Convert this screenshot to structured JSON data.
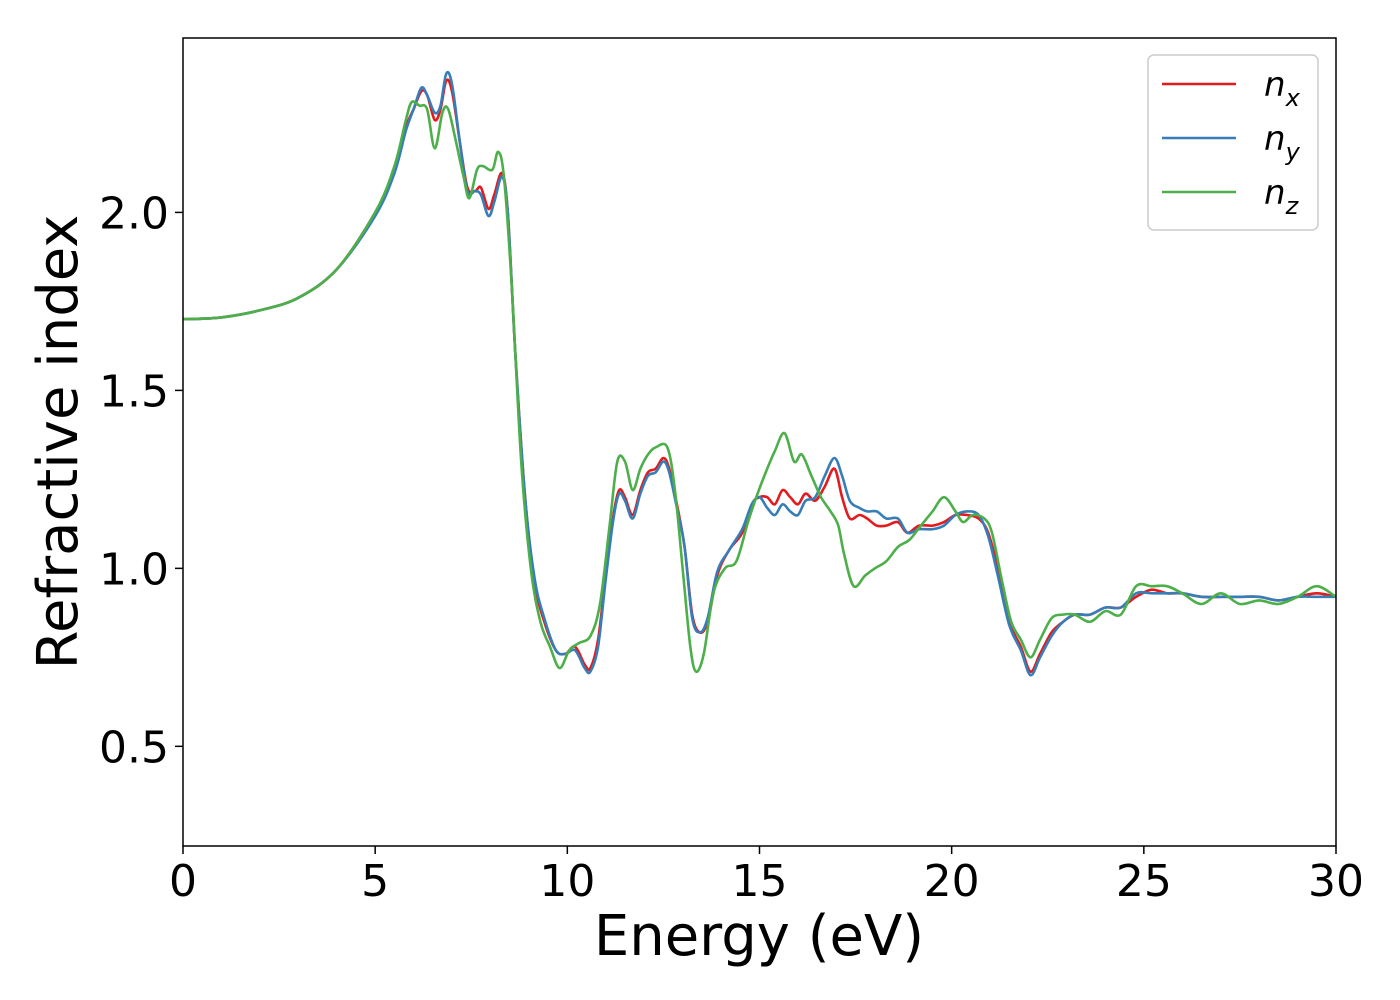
{
  "chart_data": {
    "type": "line",
    "title": "",
    "xlabel": "Energy (eV)",
    "ylabel": "Refractive index",
    "xlim": [
      0,
      30
    ],
    "ylim": [
      0.22,
      2.49
    ],
    "x_ticks": [
      0,
      5,
      10,
      15,
      20,
      25,
      30
    ],
    "y_ticks": [
      0.5,
      1.0,
      1.5,
      2.0
    ],
    "x_tick_labels": [
      "0",
      "5",
      "10",
      "15",
      "20",
      "25",
      "30"
    ],
    "y_tick_labels": [
      "0.5",
      "1.0",
      "1.5",
      "2.0"
    ],
    "grid": false,
    "legend_position": "top-right",
    "series": [
      {
        "name": "n",
        "subscript": "x",
        "color": "#e41a1c",
        "points": [
          [
            0,
            1.7
          ],
          [
            1,
            1.705
          ],
          [
            2,
            1.725
          ],
          [
            3,
            1.76
          ],
          [
            4,
            1.84
          ],
          [
            5,
            2.0
          ],
          [
            5.5,
            2.12
          ],
          [
            5.8,
            2.24
          ],
          [
            6.0,
            2.29
          ],
          [
            6.2,
            2.34
          ],
          [
            6.35,
            2.33
          ],
          [
            6.55,
            2.26
          ],
          [
            6.7,
            2.29
          ],
          [
            6.85,
            2.37
          ],
          [
            7.0,
            2.34
          ],
          [
            7.2,
            2.2
          ],
          [
            7.4,
            2.07
          ],
          [
            7.6,
            2.06
          ],
          [
            7.75,
            2.07
          ],
          [
            7.95,
            2.01
          ],
          [
            8.1,
            2.05
          ],
          [
            8.3,
            2.11
          ],
          [
            8.45,
            2.0
          ],
          [
            8.65,
            1.6
          ],
          [
            8.9,
            1.2
          ],
          [
            9.15,
            0.96
          ],
          [
            9.4,
            0.85
          ],
          [
            9.7,
            0.77
          ],
          [
            9.95,
            0.76
          ],
          [
            10.2,
            0.78
          ],
          [
            10.45,
            0.73
          ],
          [
            10.6,
            0.72
          ],
          [
            10.8,
            0.8
          ],
          [
            11.0,
            0.98
          ],
          [
            11.2,
            1.15
          ],
          [
            11.35,
            1.22
          ],
          [
            11.5,
            1.2
          ],
          [
            11.7,
            1.15
          ],
          [
            11.9,
            1.22
          ],
          [
            12.1,
            1.27
          ],
          [
            12.3,
            1.28
          ],
          [
            12.5,
            1.31
          ],
          [
            12.65,
            1.28
          ],
          [
            12.85,
            1.18
          ],
          [
            13.05,
            1.06
          ],
          [
            13.25,
            0.87
          ],
          [
            13.45,
            0.82
          ],
          [
            13.65,
            0.85
          ],
          [
            13.9,
            0.98
          ],
          [
            14.2,
            1.05
          ],
          [
            14.55,
            1.1
          ],
          [
            14.8,
            1.18
          ],
          [
            15.0,
            1.2
          ],
          [
            15.2,
            1.2
          ],
          [
            15.4,
            1.18
          ],
          [
            15.6,
            1.22
          ],
          [
            15.8,
            1.2
          ],
          [
            16.0,
            1.18
          ],
          [
            16.2,
            1.21
          ],
          [
            16.45,
            1.19
          ],
          [
            16.7,
            1.23
          ],
          [
            16.95,
            1.28
          ],
          [
            17.15,
            1.2
          ],
          [
            17.35,
            1.14
          ],
          [
            17.6,
            1.15
          ],
          [
            17.8,
            1.14
          ],
          [
            18.05,
            1.12
          ],
          [
            18.3,
            1.12
          ],
          [
            18.6,
            1.13
          ],
          [
            18.85,
            1.1
          ],
          [
            19.15,
            1.12
          ],
          [
            19.5,
            1.12
          ],
          [
            19.8,
            1.13
          ],
          [
            20.1,
            1.15
          ],
          [
            20.4,
            1.15
          ],
          [
            20.7,
            1.14
          ],
          [
            20.95,
            1.1
          ],
          [
            21.2,
            1.0
          ],
          [
            21.5,
            0.85
          ],
          [
            21.8,
            0.78
          ],
          [
            22.05,
            0.71
          ],
          [
            22.3,
            0.76
          ],
          [
            22.6,
            0.82
          ],
          [
            22.9,
            0.85
          ],
          [
            23.2,
            0.87
          ],
          [
            23.6,
            0.87
          ],
          [
            24.0,
            0.89
          ],
          [
            24.4,
            0.89
          ],
          [
            24.8,
            0.92
          ],
          [
            25.2,
            0.94
          ],
          [
            25.6,
            0.93
          ],
          [
            26.0,
            0.93
          ],
          [
            26.5,
            0.92
          ],
          [
            27.0,
            0.92
          ],
          [
            27.5,
            0.92
          ],
          [
            28.0,
            0.92
          ],
          [
            28.5,
            0.91
          ],
          [
            29.0,
            0.92
          ],
          [
            29.5,
            0.93
          ],
          [
            30.0,
            0.92
          ]
        ]
      },
      {
        "name": "n",
        "subscript": "y",
        "color": "#377eb8",
        "points": [
          [
            0,
            1.7
          ],
          [
            1,
            1.705
          ],
          [
            2,
            1.725
          ],
          [
            3,
            1.76
          ],
          [
            4,
            1.84
          ],
          [
            5,
            1.99
          ],
          [
            5.5,
            2.11
          ],
          [
            5.8,
            2.23
          ],
          [
            6.0,
            2.29
          ],
          [
            6.2,
            2.35
          ],
          [
            6.35,
            2.33
          ],
          [
            6.55,
            2.28
          ],
          [
            6.7,
            2.3
          ],
          [
            6.85,
            2.39
          ],
          [
            7.0,
            2.36
          ],
          [
            7.2,
            2.2
          ],
          [
            7.4,
            2.06
          ],
          [
            7.6,
            2.06
          ],
          [
            7.75,
            2.05
          ],
          [
            7.95,
            1.99
          ],
          [
            8.1,
            2.03
          ],
          [
            8.3,
            2.1
          ],
          [
            8.45,
            2.0
          ],
          [
            8.65,
            1.6
          ],
          [
            8.9,
            1.2
          ],
          [
            9.15,
            0.97
          ],
          [
            9.4,
            0.86
          ],
          [
            9.7,
            0.77
          ],
          [
            9.95,
            0.76
          ],
          [
            10.2,
            0.77
          ],
          [
            10.45,
            0.72
          ],
          [
            10.6,
            0.71
          ],
          [
            10.8,
            0.78
          ],
          [
            11.0,
            0.97
          ],
          [
            11.2,
            1.14
          ],
          [
            11.35,
            1.21
          ],
          [
            11.5,
            1.19
          ],
          [
            11.7,
            1.14
          ],
          [
            11.9,
            1.21
          ],
          [
            12.1,
            1.26
          ],
          [
            12.3,
            1.27
          ],
          [
            12.5,
            1.3
          ],
          [
            12.65,
            1.27
          ],
          [
            12.85,
            1.17
          ],
          [
            13.05,
            1.06
          ],
          [
            13.25,
            0.86
          ],
          [
            13.45,
            0.82
          ],
          [
            13.65,
            0.86
          ],
          [
            13.9,
            0.99
          ],
          [
            14.2,
            1.05
          ],
          [
            14.55,
            1.11
          ],
          [
            14.8,
            1.18
          ],
          [
            15.0,
            1.2
          ],
          [
            15.2,
            1.17
          ],
          [
            15.4,
            1.15
          ],
          [
            15.6,
            1.18
          ],
          [
            15.8,
            1.16
          ],
          [
            16.0,
            1.15
          ],
          [
            16.2,
            1.19
          ],
          [
            16.45,
            1.2
          ],
          [
            16.7,
            1.26
          ],
          [
            16.95,
            1.31
          ],
          [
            17.15,
            1.26
          ],
          [
            17.35,
            1.19
          ],
          [
            17.6,
            1.17
          ],
          [
            17.8,
            1.16
          ],
          [
            18.05,
            1.16
          ],
          [
            18.3,
            1.14
          ],
          [
            18.6,
            1.14
          ],
          [
            18.85,
            1.1
          ],
          [
            19.15,
            1.11
          ],
          [
            19.5,
            1.11
          ],
          [
            19.8,
            1.12
          ],
          [
            20.1,
            1.15
          ],
          [
            20.4,
            1.16
          ],
          [
            20.7,
            1.15
          ],
          [
            20.95,
            1.09
          ],
          [
            21.2,
            0.98
          ],
          [
            21.5,
            0.84
          ],
          [
            21.8,
            0.77
          ],
          [
            22.05,
            0.7
          ],
          [
            22.3,
            0.75
          ],
          [
            22.6,
            0.81
          ],
          [
            22.9,
            0.85
          ],
          [
            23.2,
            0.87
          ],
          [
            23.6,
            0.87
          ],
          [
            24.0,
            0.89
          ],
          [
            24.4,
            0.89
          ],
          [
            24.8,
            0.93
          ],
          [
            25.2,
            0.93
          ],
          [
            25.6,
            0.93
          ],
          [
            26.0,
            0.93
          ],
          [
            26.5,
            0.92
          ],
          [
            27.0,
            0.92
          ],
          [
            27.5,
            0.92
          ],
          [
            28.0,
            0.92
          ],
          [
            28.5,
            0.91
          ],
          [
            29.0,
            0.92
          ],
          [
            29.5,
            0.92
          ],
          [
            30.0,
            0.92
          ]
        ]
      },
      {
        "name": "n",
        "subscript": "z",
        "color": "#4daf4a",
        "points": [
          [
            0,
            1.7
          ],
          [
            1,
            1.705
          ],
          [
            2,
            1.725
          ],
          [
            3,
            1.76
          ],
          [
            4,
            1.84
          ],
          [
            5,
            2.0
          ],
          [
            5.5,
            2.13
          ],
          [
            5.8,
            2.26
          ],
          [
            5.95,
            2.31
          ],
          [
            6.15,
            2.3
          ],
          [
            6.35,
            2.29
          ],
          [
            6.55,
            2.18
          ],
          [
            6.75,
            2.28
          ],
          [
            6.9,
            2.29
          ],
          [
            7.1,
            2.2
          ],
          [
            7.3,
            2.1
          ],
          [
            7.45,
            2.04
          ],
          [
            7.65,
            2.12
          ],
          [
            7.8,
            2.13
          ],
          [
            8.05,
            2.12
          ],
          [
            8.2,
            2.17
          ],
          [
            8.35,
            2.1
          ],
          [
            8.55,
            1.8
          ],
          [
            8.8,
            1.3
          ],
          [
            9.05,
            1.0
          ],
          [
            9.3,
            0.85
          ],
          [
            9.55,
            0.78
          ],
          [
            9.8,
            0.72
          ],
          [
            10.05,
            0.77
          ],
          [
            10.3,
            0.79
          ],
          [
            10.6,
            0.81
          ],
          [
            10.85,
            0.9
          ],
          [
            11.1,
            1.12
          ],
          [
            11.3,
            1.3
          ],
          [
            11.5,
            1.3
          ],
          [
            11.7,
            1.22
          ],
          [
            11.9,
            1.28
          ],
          [
            12.1,
            1.32
          ],
          [
            12.3,
            1.34
          ],
          [
            12.6,
            1.34
          ],
          [
            12.8,
            1.22
          ],
          [
            13.0,
            1.0
          ],
          [
            13.2,
            0.78
          ],
          [
            13.35,
            0.71
          ],
          [
            13.55,
            0.76
          ],
          [
            13.8,
            0.93
          ],
          [
            14.1,
            1.0
          ],
          [
            14.4,
            1.02
          ],
          [
            14.7,
            1.13
          ],
          [
            14.95,
            1.21
          ],
          [
            15.2,
            1.28
          ],
          [
            15.4,
            1.33
          ],
          [
            15.65,
            1.38
          ],
          [
            15.9,
            1.3
          ],
          [
            16.1,
            1.32
          ],
          [
            16.35,
            1.26
          ],
          [
            16.6,
            1.2
          ],
          [
            16.85,
            1.16
          ],
          [
            17.05,
            1.12
          ],
          [
            17.2,
            1.04
          ],
          [
            17.45,
            0.95
          ],
          [
            17.75,
            0.98
          ],
          [
            18.0,
            1.0
          ],
          [
            18.3,
            1.02
          ],
          [
            18.6,
            1.06
          ],
          [
            18.9,
            1.08
          ],
          [
            19.2,
            1.12
          ],
          [
            19.5,
            1.16
          ],
          [
            19.8,
            1.2
          ],
          [
            20.1,
            1.16
          ],
          [
            20.3,
            1.13
          ],
          [
            20.55,
            1.15
          ],
          [
            20.85,
            1.14
          ],
          [
            21.05,
            1.1
          ],
          [
            21.3,
            0.97
          ],
          [
            21.55,
            0.85
          ],
          [
            21.8,
            0.8
          ],
          [
            22.05,
            0.75
          ],
          [
            22.3,
            0.8
          ],
          [
            22.6,
            0.86
          ],
          [
            22.9,
            0.87
          ],
          [
            23.2,
            0.87
          ],
          [
            23.6,
            0.85
          ],
          [
            24.0,
            0.88
          ],
          [
            24.4,
            0.87
          ],
          [
            24.8,
            0.95
          ],
          [
            25.2,
            0.95
          ],
          [
            25.6,
            0.95
          ],
          [
            26.0,
            0.93
          ],
          [
            26.5,
            0.9
          ],
          [
            27.0,
            0.93
          ],
          [
            27.5,
            0.9
          ],
          [
            28.0,
            0.91
          ],
          [
            28.5,
            0.9
          ],
          [
            29.0,
            0.92
          ],
          [
            29.5,
            0.95
          ],
          [
            30.0,
            0.92
          ]
        ]
      }
    ]
  }
}
